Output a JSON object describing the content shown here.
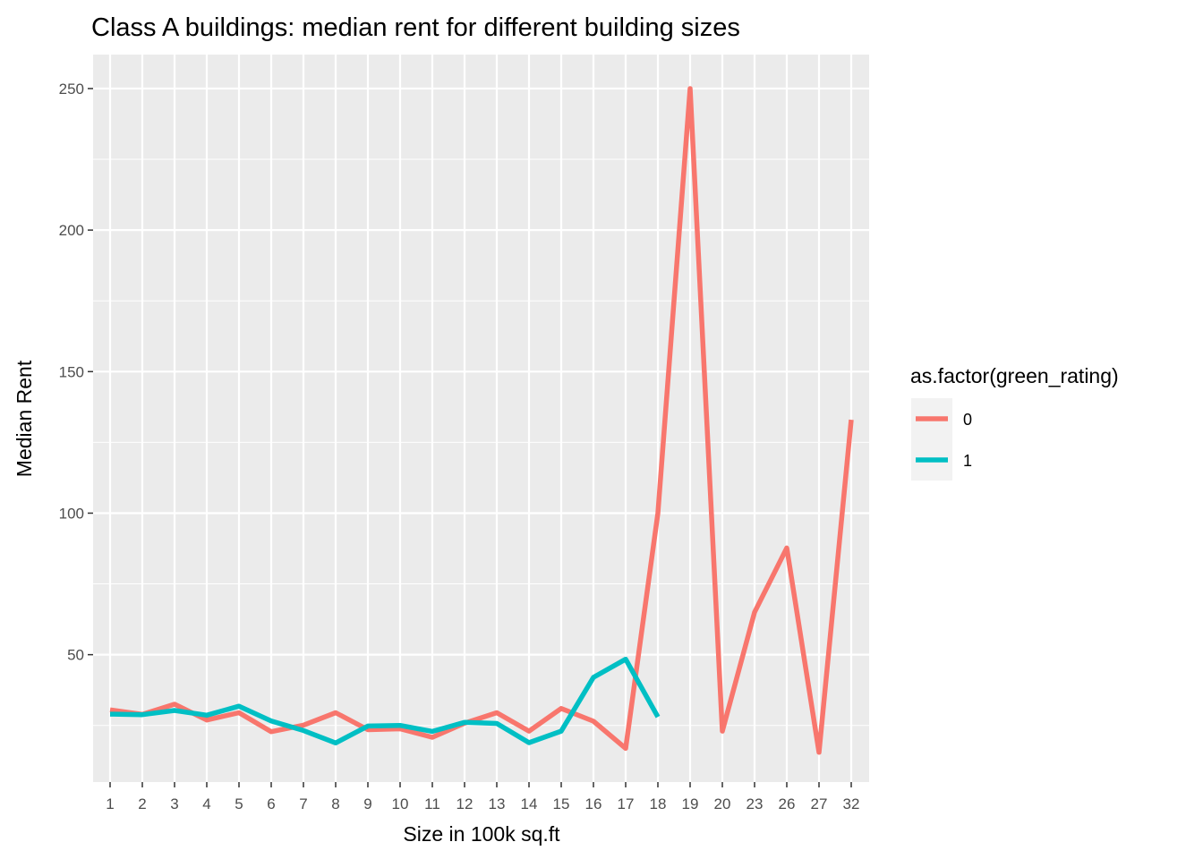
{
  "chart_data": {
    "type": "line",
    "title": "Class A buildings: median rent for different building sizes",
    "xlabel": "Size in 100k sq.ft",
    "ylabel": "Median Rent",
    "categories": [
      "1",
      "2",
      "3",
      "4",
      "5",
      "6",
      "7",
      "8",
      "9",
      "10",
      "11",
      "12",
      "13",
      "14",
      "15",
      "16",
      "17",
      "18",
      "19",
      "20",
      "23",
      "26",
      "27",
      "32"
    ],
    "ylim": [
      5,
      262
    ],
    "yticks": [
      50,
      100,
      150,
      200,
      250
    ],
    "grid": true,
    "legend": {
      "title": "as.factor(green_rating)",
      "position": "right"
    },
    "series": [
      {
        "name": "0",
        "color": "#F8766D",
        "values": [
          30.5,
          28.9,
          32.5,
          26.9,
          29.5,
          22.8,
          25.1,
          29.5,
          23.5,
          23.8,
          20.8,
          25.8,
          29.5,
          23.0,
          31.0,
          26.5,
          16.9,
          100.0,
          250.0,
          23.0,
          65.0,
          87.7,
          15.5,
          133.0
        ]
      },
      {
        "name": "1",
        "color": "#00BFC4",
        "values": [
          29.0,
          28.8,
          30.3,
          28.6,
          31.8,
          26.6,
          23.2,
          18.8,
          24.8,
          25.0,
          22.9,
          26.1,
          25.7,
          18.9,
          23.0,
          42.0,
          48.4,
          28.0,
          null,
          null,
          null,
          null,
          null,
          null
        ]
      }
    ]
  }
}
